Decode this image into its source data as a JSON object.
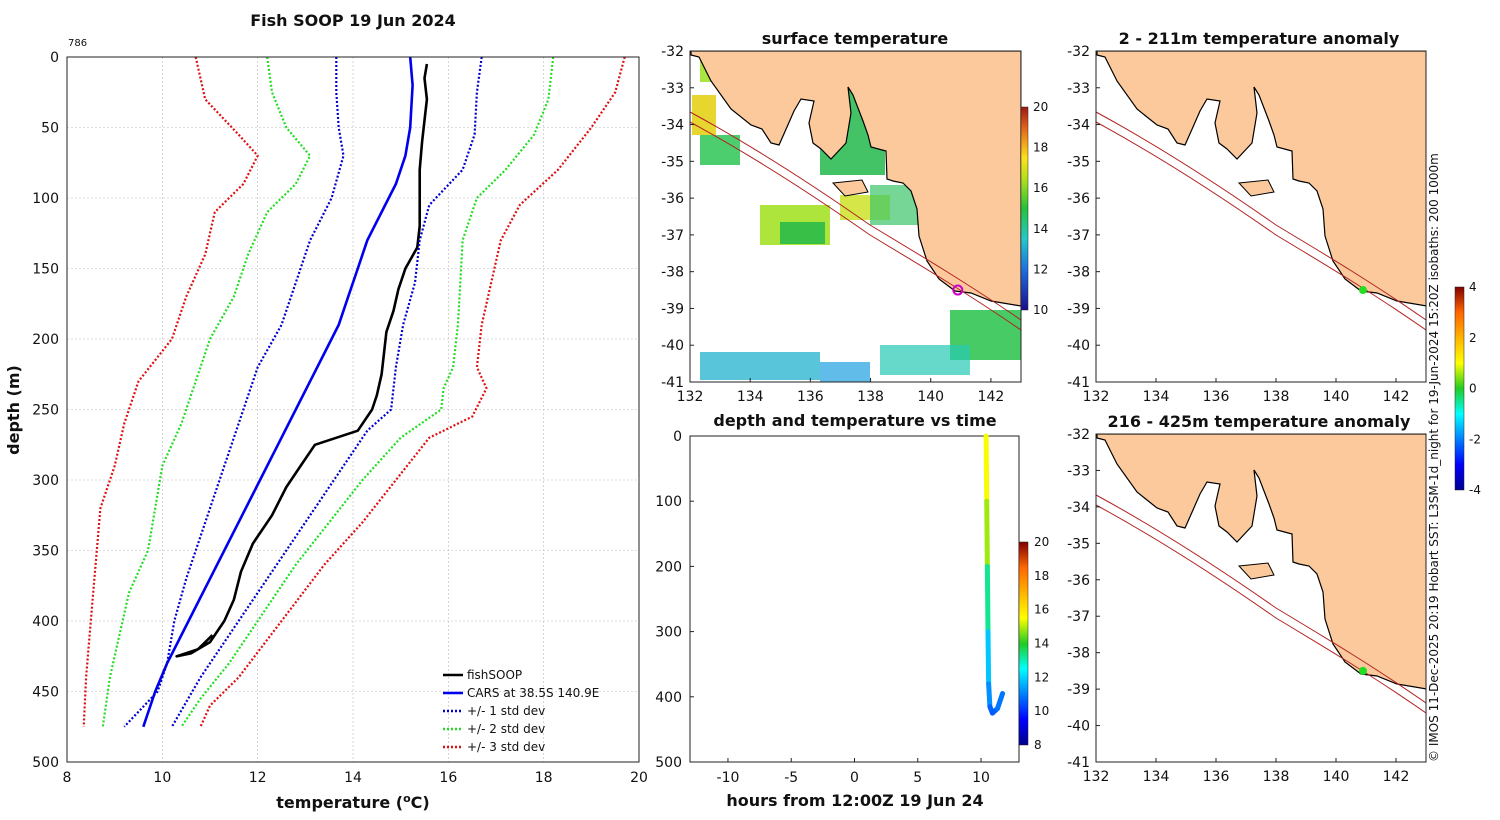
{
  "chart_data": [
    {
      "id": "profile",
      "type": "line",
      "title": "Fish SOOP 19 Jun 2024",
      "corner_label": "786",
      "xlabel": "temperature (°C)",
      "ylabel": "depth (m)",
      "xlim": [
        8,
        20
      ],
      "ylim": [
        0,
        500
      ],
      "y_reversed": true,
      "grid": true,
      "xticks": [
        "8",
        "10",
        "12",
        "14",
        "16",
        "18",
        "20"
      ],
      "yticks": [
        "0",
        "50",
        "100",
        "150",
        "200",
        "250",
        "300",
        "350",
        "400",
        "450",
        "500"
      ],
      "legend_position": "bottom-right",
      "legend": [
        "fishSOOP",
        "CARS at 38.5S 140.9E",
        "+/- 1 std dev",
        "+/- 2 std dev",
        "+/- 3 std dev"
      ],
      "series": [
        {
          "name": "fishSOOP",
          "color": "#000000",
          "style": "solid",
          "points": [
            [
              15.55,
              5
            ],
            [
              15.5,
              15
            ],
            [
              15.55,
              30
            ],
            [
              15.5,
              45
            ],
            [
              15.45,
              60
            ],
            [
              15.4,
              80
            ],
            [
              15.4,
              100
            ],
            [
              15.4,
              120
            ],
            [
              15.35,
              135
            ],
            [
              15.1,
              150
            ],
            [
              14.95,
              165
            ],
            [
              14.85,
              180
            ],
            [
              14.7,
              195
            ],
            [
              14.65,
              210
            ],
            [
              14.6,
              225
            ],
            [
              14.5,
              240
            ],
            [
              14.4,
              250
            ],
            [
              14.1,
              265
            ],
            [
              13.2,
              275
            ],
            [
              12.9,
              290
            ],
            [
              12.6,
              305
            ],
            [
              12.3,
              325
            ],
            [
              11.9,
              345
            ],
            [
              11.65,
              365
            ],
            [
              11.5,
              385
            ],
            [
              11.3,
              400
            ],
            [
              11.0,
              415
            ],
            [
              10.6,
              423
            ],
            [
              10.3,
              425
            ],
            [
              10.75,
              420
            ],
            [
              11.05,
              410
            ]
          ]
        },
        {
          "name": "CARS at 38.5S 140.9E",
          "color": "#0000ee",
          "style": "solid",
          "points": [
            [
              15.2,
              0
            ],
            [
              15.25,
              20
            ],
            [
              15.2,
              50
            ],
            [
              15.1,
              70
            ],
            [
              14.9,
              90
            ],
            [
              14.6,
              110
            ],
            [
              14.3,
              130
            ],
            [
              14.1,
              150
            ],
            [
              13.9,
              170
            ],
            [
              13.7,
              190
            ],
            [
              13.4,
              210
            ],
            [
              13.1,
              230
            ],
            [
              12.8,
              250
            ],
            [
              12.5,
              270
            ],
            [
              12.2,
              290
            ],
            [
              11.9,
              310
            ],
            [
              11.6,
              330
            ],
            [
              11.3,
              350
            ],
            [
              11.0,
              370
            ],
            [
              10.7,
              390
            ],
            [
              10.4,
              410
            ],
            [
              10.1,
              430
            ],
            [
              9.85,
              450
            ],
            [
              9.6,
              475
            ]
          ]
        },
        {
          "name": "+/- 1 std dev",
          "color": "#0000cc",
          "style": "dotted",
          "points": [
            [
              13.65,
              0
            ],
            [
              13.65,
              25
            ],
            [
              13.7,
              50
            ],
            [
              13.8,
              70
            ],
            [
              13.55,
              100
            ],
            [
              13.1,
              130
            ],
            [
              12.8,
              160
            ],
            [
              12.5,
              190
            ],
            [
              12.0,
              220
            ],
            [
              11.7,
              250
            ],
            [
              11.4,
              280
            ],
            [
              11.1,
              310
            ],
            [
              10.8,
              340
            ],
            [
              10.5,
              370
            ],
            [
              10.25,
              400
            ],
            [
              10.1,
              430
            ],
            [
              9.9,
              450
            ],
            [
              9.2,
              475
            ]
          ]
        },
        {
          "name": "+/- 1 std dev",
          "color": "#0000cc",
          "style": "dotted",
          "points": [
            [
              16.7,
              0
            ],
            [
              16.6,
              25
            ],
            [
              16.55,
              55
            ],
            [
              16.3,
              80
            ],
            [
              15.6,
              105
            ],
            [
              15.4,
              130
            ],
            [
              15.3,
              160
            ],
            [
              15.05,
              190
            ],
            [
              14.9,
              220
            ],
            [
              14.8,
              250
            ],
            [
              14.3,
              265
            ],
            [
              13.8,
              290
            ],
            [
              13.2,
              320
            ],
            [
              12.6,
              350
            ],
            [
              12.0,
              380
            ],
            [
              11.4,
              410
            ],
            [
              10.8,
              440
            ],
            [
              10.2,
              475
            ]
          ]
        },
        {
          "name": "+/- 2 std dev",
          "color": "#22dd22",
          "style": "dotted",
          "points": [
            [
              12.2,
              0
            ],
            [
              12.3,
              25
            ],
            [
              12.6,
              50
            ],
            [
              13.1,
              70
            ],
            [
              12.8,
              90
            ],
            [
              12.2,
              110
            ],
            [
              11.8,
              140
            ],
            [
              11.5,
              170
            ],
            [
              11.0,
              200
            ],
            [
              10.7,
              230
            ],
            [
              10.4,
              260
            ],
            [
              10.0,
              290
            ],
            [
              9.85,
              320
            ],
            [
              9.7,
              350
            ],
            [
              9.3,
              380
            ],
            [
              9.1,
              410
            ],
            [
              8.9,
              440
            ],
            [
              8.75,
              475
            ]
          ]
        },
        {
          "name": "+/- 2 std dev",
          "color": "#22dd22",
          "style": "dotted",
          "points": [
            [
              18.2,
              0
            ],
            [
              18.1,
              30
            ],
            [
              17.8,
              55
            ],
            [
              17.2,
              80
            ],
            [
              16.6,
              100
            ],
            [
              16.3,
              130
            ],
            [
              16.25,
              160
            ],
            [
              16.2,
              190
            ],
            [
              16.1,
              220
            ],
            [
              15.9,
              235
            ],
            [
              15.85,
              250
            ],
            [
              15.0,
              270
            ],
            [
              14.2,
              300
            ],
            [
              13.5,
              330
            ],
            [
              12.8,
              360
            ],
            [
              12.0,
              400
            ],
            [
              11.4,
              430
            ],
            [
              10.8,
              455
            ],
            [
              10.4,
              475
            ]
          ]
        },
        {
          "name": "+/- 3 std dev",
          "color": "#dd1111",
          "style": "dotted",
          "points": [
            [
              10.7,
              0
            ],
            [
              10.9,
              30
            ],
            [
              11.6,
              55
            ],
            [
              12.0,
              70
            ],
            [
              11.7,
              90
            ],
            [
              11.1,
              110
            ],
            [
              10.9,
              140
            ],
            [
              10.5,
              170
            ],
            [
              10.2,
              200
            ],
            [
              9.5,
              230
            ],
            [
              9.2,
              260
            ],
            [
              9.0,
              290
            ],
            [
              8.7,
              320
            ],
            [
              8.6,
              360
            ],
            [
              8.5,
              400
            ],
            [
              8.4,
              440
            ],
            [
              8.35,
              475
            ]
          ]
        },
        {
          "name": "+/- 3 std dev",
          "color": "#dd1111",
          "style": "dotted",
          "points": [
            [
              19.7,
              0
            ],
            [
              19.5,
              25
            ],
            [
              19.0,
              50
            ],
            [
              18.3,
              80
            ],
            [
              17.5,
              105
            ],
            [
              17.1,
              130
            ],
            [
              16.9,
              160
            ],
            [
              16.7,
              190
            ],
            [
              16.6,
              220
            ],
            [
              16.8,
              235
            ],
            [
              16.5,
              255
            ],
            [
              15.6,
              270
            ],
            [
              14.9,
              300
            ],
            [
              14.2,
              330
            ],
            [
              13.4,
              360
            ],
            [
              12.5,
              400
            ],
            [
              11.6,
              440
            ],
            [
              11.0,
              460
            ],
            [
              10.8,
              475
            ]
          ]
        }
      ]
    },
    {
      "id": "sst_map",
      "type": "heatmap",
      "title": "surface temperature",
      "xlim": [
        132,
        143
      ],
      "ylim": [
        -41,
        -32
      ],
      "xticks": [
        "132",
        "134",
        "136",
        "138",
        "140",
        "142"
      ],
      "yticks": [
        "-32",
        "-33",
        "-34",
        "-35",
        "-36",
        "-37",
        "-38",
        "-39",
        "-40",
        "-41"
      ],
      "colorbar_range": [
        10,
        20
      ],
      "colorbar_ticks": [
        "10",
        "12",
        "14",
        "16",
        "18",
        "20"
      ],
      "marker": {
        "lon": 140.9,
        "lat": -38.5,
        "color": "#cc00cc"
      }
    },
    {
      "id": "depth_time",
      "type": "scatter",
      "title": "depth and temperature vs time",
      "xlabel": "hours from 12:00Z 19 Jun 24",
      "xlim": [
        -13,
        13
      ],
      "ylim": [
        0,
        500
      ],
      "y_reversed": true,
      "xticks": [
        "-10",
        "-5",
        "0",
        "5",
        "10"
      ],
      "yticks": [
        "0",
        "100",
        "200",
        "300",
        "400",
        "500"
      ],
      "colorbar_range": [
        8,
        20
      ],
      "colorbar_ticks": [
        "8",
        "10",
        "12",
        "14",
        "16",
        "18",
        "20"
      ],
      "trace": [
        [
          10.4,
          0,
          15.5
        ],
        [
          10.45,
          100,
          15.4
        ],
        [
          10.5,
          200,
          14.3
        ],
        [
          10.55,
          300,
          12.2
        ],
        [
          10.6,
          380,
          11.5
        ],
        [
          10.7,
          415,
          10.9
        ],
        [
          10.9,
          425,
          10.4
        ],
        [
          11.3,
          418,
          10.8
        ],
        [
          11.7,
          395,
          11.0
        ]
      ]
    },
    {
      "id": "anom_2_211",
      "type": "heatmap",
      "title": "2 - 211m temperature anomaly",
      "xlim": [
        132,
        143
      ],
      "ylim": [
        -41,
        -32
      ],
      "xticks": [
        "132",
        "134",
        "136",
        "138",
        "140",
        "142"
      ],
      "yticks": [
        "-32",
        "-33",
        "-34",
        "-35",
        "-36",
        "-37",
        "-38",
        "-39",
        "-40",
        "-41"
      ],
      "colorbar_range": [
        -4,
        4
      ],
      "colorbar_ticks": [
        "-4",
        "-2",
        "0",
        "2",
        "4"
      ],
      "marker": {
        "lon": 140.9,
        "lat": -38.5,
        "color": "#22dd22"
      }
    },
    {
      "id": "anom_216_425",
      "type": "heatmap",
      "title": "216 - 425m temperature anomaly",
      "xlim": [
        132,
        143
      ],
      "ylim": [
        -41,
        -32
      ],
      "xticks": [
        "132",
        "134",
        "136",
        "138",
        "140",
        "142"
      ],
      "yticks": [
        "-32",
        "-33",
        "-34",
        "-35",
        "-36",
        "-37",
        "-38",
        "-39",
        "-40",
        "-41"
      ],
      "marker": {
        "lon": 140.9,
        "lat": -38.5,
        "color": "#22dd22"
      }
    }
  ],
  "side_note": "© IMOS 11-Dec-2025 20:19 Hobart SST: L3SM-1d_night for 19-Jun-2024 15:20Z isobaths: 200  1000m",
  "colors": {
    "land": "#fbc99b",
    "coast": "#000000",
    "isobath": "#b22222",
    "grid": "#bbbbbb"
  }
}
